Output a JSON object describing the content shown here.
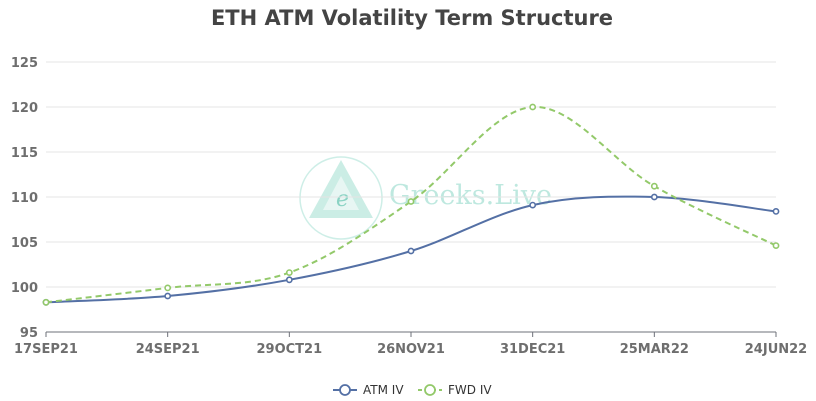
{
  "watermark": {
    "text": "Greeks.Live",
    "logo_letter": "e",
    "color": "#b7e6dc"
  },
  "chart_data": {
    "type": "line",
    "title": "ETH ATM Volatility Term Structure",
    "xlabel": "",
    "ylabel": "",
    "categories": [
      "17SEP21",
      "24SEP21",
      "29OCT21",
      "26NOV21",
      "31DEC21",
      "25MAR22",
      "24JUN22"
    ],
    "ylim": [
      95,
      125
    ],
    "yticks": [
      95,
      100,
      105,
      110,
      115,
      120,
      125
    ],
    "grid": true,
    "legend_position": "bottom-center",
    "series": [
      {
        "name": "ATM IV",
        "values": [
          98.3,
          99.0,
          100.8,
          104.0,
          109.1,
          110.0,
          108.4
        ],
        "color": "#5470a5",
        "dashed": false
      },
      {
        "name": "FWD IV",
        "values": [
          98.3,
          99.9,
          101.6,
          109.5,
          120.0,
          111.2,
          104.6
        ],
        "color": "#93c96a",
        "dashed": true
      }
    ]
  }
}
